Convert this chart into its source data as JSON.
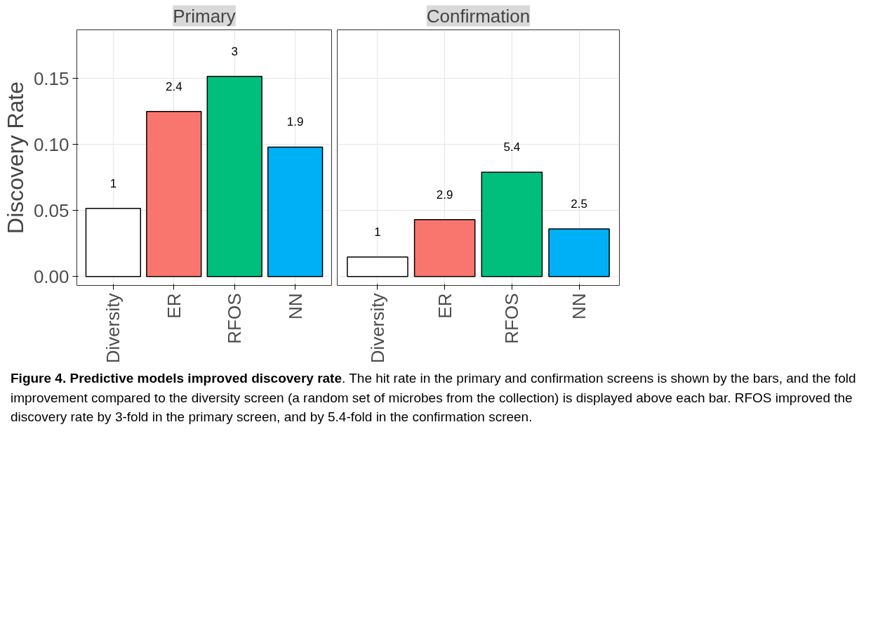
{
  "chart_data": [
    {
      "type": "bar",
      "title": "Primary",
      "ylabel": "Discovery Rate",
      "categories": [
        "Diversity",
        "ER",
        "RFOS",
        "NN"
      ],
      "values": [
        0.0516,
        0.125,
        0.1516,
        0.098
      ],
      "colors": [
        "#ffffff",
        "#f8766d",
        "#00bf7d",
        "#00b0f6"
      ],
      "ylim": [
        -0.0068,
        0.1868
      ],
      "yticks": [
        {
          "value": 0,
          "label": "0.00"
        },
        0.05,
        {
          "value": 0.1,
          "label": "0.10"
        },
        0.15
      ],
      "grid": true,
      "annotations": [
        {
          "text": "1",
          "x": "Diversity",
          "y": 0.0516
        },
        {
          "text": "2.4",
          "x": "ER",
          "y": 0.125
        },
        {
          "text": "3",
          "x": "RFOS",
          "y": 0.1516
        },
        {
          "text": "1.9",
          "x": "NN",
          "y": 0.098
        }
      ]
    },
    {
      "type": "bar",
      "title": "Confirmation",
      "categories": [
        "Diversity",
        "ER",
        "RFOS",
        "NN"
      ],
      "values": [
        0.0147,
        0.043,
        0.079,
        0.036
      ],
      "colors": [
        "#ffffff",
        "#f8766d",
        "#00bf7d",
        "#00b0f6"
      ],
      "ylim": [
        -0.0068,
        0.1868
      ],
      "yticks": [
        0,
        0.05,
        0.1,
        0.15
      ],
      "grid": true,
      "tick_labels": "x",
      "annotations": [
        {
          "text": "1",
          "x": "Diversity",
          "y": 0.0147
        },
        {
          "text": "2.9",
          "x": "ER",
          "y": 0.043
        },
        {
          "text": "5.4",
          "x": "RFOS",
          "y": 0.079
        },
        {
          "text": "2.5",
          "x": "NN",
          "y": 0.036
        },
        "Figure 4. Predictive models improved discovery rate",
        ". The hit rate in the primary and confirmation screens is shown by the bars, and the fold improvement compared to the diversity screen (a random set of microbes from the collection) is displayed above each bar. RFOS improved the discovery rate by 3-fold in the primary screen, and by 5.4-fold in the confirmation screen."
      ]
    }
  ]
}
